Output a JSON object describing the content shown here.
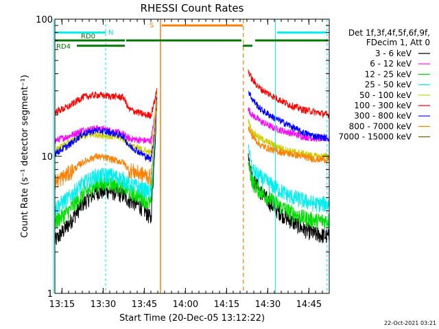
{
  "chart_data": {
    "type": "line",
    "title": "RHESSI Count Rates",
    "xlabel": "Start Time (20-Dec-05 13:12:22)",
    "ylabel": "Count Rate (s⁻¹ detector segment⁻¹)",
    "y_scale": "log",
    "ylim": [
      1,
      100
    ],
    "xlim_minutes": [
      0,
      100
    ],
    "x_ticks": [
      "13:15",
      "13:30",
      "13:45",
      "14:00",
      "14:15",
      "14:30",
      "14:45"
    ],
    "y_ticks": [
      "1",
      "10",
      "100"
    ],
    "footer_date": "22-Oct-2021 03:21",
    "legend": {
      "header": [
        "Det 1f,3f,4f,5f,6f,9f,",
        "FDecim 1, Att 0"
      ],
      "entries": [
        {
          "label": "3 - 6 keV",
          "color": "#000000"
        },
        {
          "label": "6 - 12 keV",
          "color": "#ff00ff"
        },
        {
          "label": "12 - 25 keV",
          "color": "#00dd00"
        },
        {
          "label": "25 - 50 keV",
          "color": "#00eeee"
        },
        {
          "label": "50 - 100 keV",
          "color": "#cccc00"
        },
        {
          "label": "100 - 300 keV",
          "color": "#ff0000"
        },
        {
          "label": "300 - 800 keV",
          "color": "#0000ff"
        },
        {
          "label": "800 - 7000 keV",
          "color": "#ff8000"
        },
        {
          "label": "7000 - 15000 keV",
          "color": "#806000"
        }
      ]
    },
    "flag_labels": {
      "n": "N",
      "s": "S",
      "rd0": "RD0",
      "rd4": "RD4"
    },
    "series": [
      {
        "name": "3 - 6 keV",
        "color": "#000000",
        "profile": [
          [
            0,
            2.4
          ],
          [
            5,
            3.2
          ],
          [
            10,
            4.5
          ],
          [
            15,
            5.5
          ],
          [
            20,
            5.6
          ],
          [
            25,
            5.2
          ],
          [
            27,
            4.8
          ],
          [
            30,
            4.5
          ],
          [
            33,
            4.0
          ],
          [
            35,
            3.5
          ],
          [
            36.5,
            12
          ],
          [
            37.2,
            25
          ],
          [
            70.5,
            10
          ],
          [
            72,
            7
          ],
          [
            75,
            5.5
          ],
          [
            80,
            4.2
          ],
          [
            85,
            3.5
          ],
          [
            90,
            3.0
          ],
          [
            95,
            2.7
          ],
          [
            100,
            2.6
          ]
        ]
      },
      {
        "name": "6 - 12 keV",
        "color": "#ff00ff",
        "profile": [
          [
            0,
            13
          ],
          [
            5,
            14
          ],
          [
            10,
            15.5
          ],
          [
            15,
            16
          ],
          [
            20,
            15.5
          ],
          [
            25,
            14.5
          ],
          [
            27,
            13.5
          ],
          [
            30,
            13.2
          ],
          [
            33,
            13
          ],
          [
            35,
            13
          ],
          [
            36.5,
            20
          ],
          [
            37.2,
            30
          ],
          [
            70.5,
            22
          ],
          [
            72,
            20
          ],
          [
            75,
            18
          ],
          [
            80,
            16
          ],
          [
            85,
            15
          ],
          [
            90,
            14
          ],
          [
            95,
            13.5
          ],
          [
            100,
            13.5
          ]
        ]
      },
      {
        "name": "12 - 25 keV",
        "color": "#00dd00",
        "profile": [
          [
            0,
            3.3
          ],
          [
            5,
            4.0
          ],
          [
            10,
            5.2
          ],
          [
            15,
            6.2
          ],
          [
            20,
            6.4
          ],
          [
            25,
            6.0
          ],
          [
            27,
            5.5
          ],
          [
            30,
            5.2
          ],
          [
            33,
            4.8
          ],
          [
            35,
            4.5
          ],
          [
            36.5,
            14
          ],
          [
            37.2,
            26
          ],
          [
            70.5,
            9
          ],
          [
            72,
            6.5
          ],
          [
            75,
            5.5
          ],
          [
            80,
            4.6
          ],
          [
            85,
            4.0
          ],
          [
            90,
            3.6
          ],
          [
            95,
            3.4
          ],
          [
            100,
            3.4
          ]
        ]
      },
      {
        "name": "25 - 50 keV",
        "color": "#00eeee",
        "profile": [
          [
            0,
            4.2
          ],
          [
            5,
            5.0
          ],
          [
            10,
            6.3
          ],
          [
            15,
            7.2
          ],
          [
            20,
            7.3
          ],
          [
            25,
            6.8
          ],
          [
            27,
            6.3
          ],
          [
            30,
            6.0
          ],
          [
            33,
            5.7
          ],
          [
            35,
            5.5
          ],
          [
            36.5,
            14
          ],
          [
            37.2,
            26
          ],
          [
            70.5,
            12
          ],
          [
            72,
            8
          ],
          [
            75,
            7
          ],
          [
            80,
            6
          ],
          [
            85,
            5.2
          ],
          [
            90,
            4.8
          ],
          [
            95,
            4.5
          ],
          [
            100,
            4.5
          ]
        ]
      },
      {
        "name": "50 - 100 keV",
        "color": "#cccc00",
        "profile": [
          [
            0,
            11
          ],
          [
            5,
            12.5
          ],
          [
            10,
            14
          ],
          [
            15,
            14.5
          ],
          [
            20,
            14
          ],
          [
            25,
            13.5
          ],
          [
            27,
            12
          ],
          [
            30,
            11.5
          ],
          [
            33,
            11
          ],
          [
            35,
            10.5
          ],
          [
            36.5,
            20
          ],
          [
            37.2,
            30
          ],
          [
            70.5,
            18
          ],
          [
            72,
            15
          ],
          [
            75,
            13.5
          ],
          [
            80,
            12
          ],
          [
            85,
            11
          ],
          [
            90,
            10.5
          ],
          [
            95,
            10
          ],
          [
            100,
            10
          ]
        ]
      },
      {
        "name": "100 - 300 keV",
        "color": "#ff0000",
        "profile": [
          [
            0,
            21
          ],
          [
            5,
            23
          ],
          [
            10,
            27
          ],
          [
            15,
            28
          ],
          [
            20,
            27.5
          ],
          [
            25,
            27
          ],
          [
            27,
            22
          ],
          [
            30,
            21
          ],
          [
            33,
            20
          ],
          [
            35,
            20
          ],
          [
            36.5,
            26
          ],
          [
            37.2,
            31
          ],
          [
            70.5,
            42
          ],
          [
            72,
            36
          ],
          [
            75,
            31
          ],
          [
            80,
            27
          ],
          [
            85,
            24
          ],
          [
            90,
            22
          ],
          [
            95,
            21
          ],
          [
            100,
            20
          ]
        ]
      },
      {
        "name": "300 - 800 keV",
        "color": "#0000ff",
        "profile": [
          [
            0,
            10.5
          ],
          [
            5,
            12
          ],
          [
            10,
            14.5
          ],
          [
            15,
            15.5
          ],
          [
            20,
            15
          ],
          [
            25,
            14
          ],
          [
            27,
            12
          ],
          [
            30,
            11
          ],
          [
            33,
            10
          ],
          [
            35,
            9.5
          ],
          [
            36.5,
            16
          ],
          [
            37.2,
            28
          ],
          [
            70.5,
            30
          ],
          [
            72,
            26
          ],
          [
            75,
            22
          ],
          [
            80,
            19
          ],
          [
            85,
            17
          ],
          [
            90,
            15
          ],
          [
            95,
            14
          ],
          [
            100,
            13.5
          ]
        ]
      },
      {
        "name": "800 - 7000 keV",
        "color": "#ff8000",
        "profile": [
          [
            0,
            6.5
          ],
          [
            5,
            7.5
          ],
          [
            10,
            9
          ],
          [
            15,
            10
          ],
          [
            20,
            9.6
          ],
          [
            25,
            9
          ],
          [
            27,
            8
          ],
          [
            30,
            7.6
          ],
          [
            33,
            7.3
          ],
          [
            35,
            7
          ],
          [
            36.5,
            15
          ],
          [
            37.2,
            27
          ],
          [
            70.5,
            16
          ],
          [
            72,
            14
          ],
          [
            75,
            12
          ],
          [
            80,
            11
          ],
          [
            85,
            10.5
          ],
          [
            90,
            10
          ],
          [
            95,
            9.5
          ],
          [
            100,
            9.5
          ]
        ]
      }
    ],
    "gaps_minutes": [
      [
        37.2,
        70.5
      ]
    ],
    "markers": {
      "cyan_lines_minutes": [
        -0.5,
        80.4
      ],
      "cyan_dashed_minutes": [
        18.5,
        99.2
      ],
      "orange_solid_minutes": 38.5,
      "orange_dashed_minutes": 68.7,
      "attenuator_bars": [
        {
          "color": "#00eeee",
          "y": 80,
          "segments": [
            [
              0,
              18.5
            ],
            [
              81,
              99
            ]
          ]
        },
        {
          "color": "#ff8000",
          "y": 90,
          "segments": [
            [
              39,
              68.5
            ]
          ]
        },
        {
          "color": "#007700",
          "y": 70,
          "segments": [
            [
              0,
              25.5
            ],
            [
              26,
              68
            ],
            [
              73,
              99.5
            ]
          ]
        },
        {
          "color": "#007700",
          "y": 64,
          "segments": [
            [
              8,
              25.5
            ],
            [
              68.5,
              72
            ]
          ]
        }
      ]
    }
  }
}
